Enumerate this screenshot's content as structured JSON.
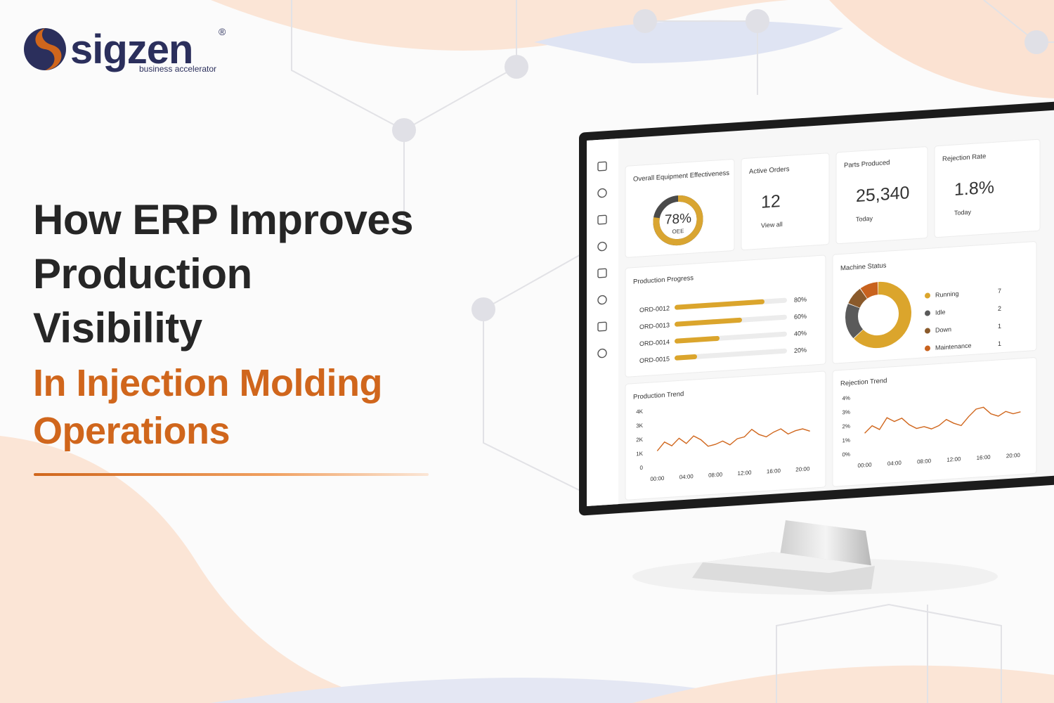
{
  "brand": {
    "name": "sigzen",
    "registered": "®",
    "tagline": "business accelerator"
  },
  "headline": {
    "lines": [
      "How ERP Improves",
      "Production",
      "Visibility"
    ],
    "highlight": [
      "In Injection Molding",
      "Operations"
    ]
  },
  "dashboard": {
    "kpis": [
      {
        "title": "Overall Equipment Effectiveness",
        "value": 78,
        "value_label": "78%",
        "caption": "OEE"
      },
      {
        "title": "Active Orders",
        "value": "12",
        "caption": "View all"
      },
      {
        "title": "Parts Produced",
        "value": "25,340",
        "caption": "Today"
      },
      {
        "title": "Rejection Rate",
        "value": "1.8%",
        "caption": "Today"
      }
    ],
    "production_progress": {
      "title": "Production Progress",
      "orders": [
        {
          "name": "ORD-0012",
          "value": 80,
          "value_label": "80%"
        },
        {
          "name": "ORD-0013",
          "value": 60,
          "value_label": "60%"
        },
        {
          "name": "ORD-0014",
          "value": 40,
          "value_label": "40%"
        },
        {
          "name": "ORD-0015",
          "value": 20,
          "value_label": "20%"
        }
      ]
    },
    "machine_status": {
      "title": "Machine Status",
      "items": [
        {
          "name": "Running",
          "value": 7,
          "color": "#dba52c"
        },
        {
          "name": "Idle",
          "value": 2,
          "color": "#5a5a5a"
        },
        {
          "name": "Down",
          "value": 1,
          "color": "#8a5a2b"
        },
        {
          "name": "Maintenance",
          "value": 1,
          "color": "#c8621e"
        }
      ]
    },
    "production_trend": {
      "title": "Production Trend",
      "color": "#d0661c",
      "xlim": [
        -1,
        22
      ],
      "xticks": [
        {
          "value": 0,
          "label": "00:00"
        },
        {
          "value": 4,
          "label": "04:00"
        },
        {
          "value": 8,
          "label": "08:00"
        },
        {
          "value": 12,
          "label": "12:00"
        },
        {
          "value": 16,
          "label": "16:00"
        },
        {
          "value": 20,
          "label": "20:00"
        }
      ],
      "ylim": [
        0,
        4000
      ],
      "yticks": [
        {
          "value": 0,
          "label": "0"
        },
        {
          "value": 1000,
          "label": "1K"
        },
        {
          "value": 2000,
          "label": "2K"
        },
        {
          "value": 3000,
          "label": "3K"
        },
        {
          "value": 4000,
          "label": "4K"
        }
      ],
      "x": [
        0,
        1,
        2,
        3,
        4,
        5,
        6,
        7,
        8,
        9,
        10,
        11,
        12,
        13,
        14,
        15,
        16,
        17,
        18,
        19,
        20,
        21
      ],
      "values": [
        1100,
        1700,
        1400,
        1900,
        1500,
        2000,
        1700,
        1200,
        1300,
        1500,
        1200,
        1600,
        1700,
        2200,
        1800,
        1600,
        1900,
        2100,
        1700,
        1900,
        2000,
        1800
      ]
    },
    "rejection_trend": {
      "title": "Rejection Trend",
      "color": "#d0661c",
      "xlim": [
        -1,
        22
      ],
      "xticks": [
        {
          "value": 0,
          "label": "00:00"
        },
        {
          "value": 4,
          "label": "04:00"
        },
        {
          "value": 8,
          "label": "08:00"
        },
        {
          "value": 12,
          "label": "12:00"
        },
        {
          "value": 16,
          "label": "16:00"
        },
        {
          "value": 20,
          "label": "20:00"
        }
      ],
      "ylim": [
        0,
        4
      ],
      "yticks": [
        {
          "value": 0,
          "label": "0%"
        },
        {
          "value": 1,
          "label": "1%"
        },
        {
          "value": 2,
          "label": "2%"
        },
        {
          "value": 3,
          "label": "3%"
        },
        {
          "value": 4,
          "label": "4%"
        }
      ],
      "x": [
        0,
        1,
        2,
        3,
        4,
        5,
        6,
        7,
        8,
        9,
        10,
        11,
        12,
        13,
        14,
        15,
        16,
        17,
        18,
        19,
        20,
        21
      ],
      "values": [
        1.4,
        1.9,
        1.6,
        2.4,
        2.1,
        2.3,
        1.8,
        1.5,
        1.6,
        1.4,
        1.6,
        2.0,
        1.7,
        1.5,
        2.1,
        2.6,
        2.7,
        2.2,
        2.0,
        2.3,
        2.1,
        2.2
      ]
    }
  }
}
